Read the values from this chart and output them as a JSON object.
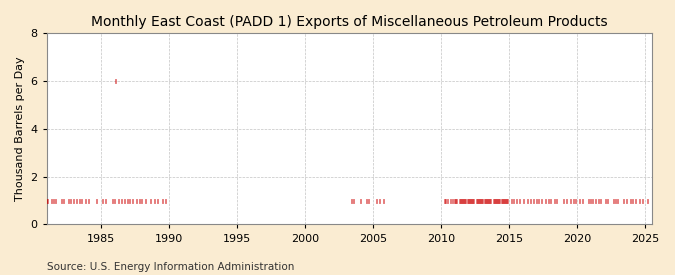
{
  "title": "Monthly East Coast (PADD 1) Exports of Miscellaneous Petroleum Products",
  "ylabel": "Thousand Barrels per Day",
  "source": "Source: U.S. Energy Information Administration",
  "background_color": "#faecd2",
  "plot_bg_color": "#ffffff",
  "line_color": "#cc0000",
  "grid_color": "#aaaaaa",
  "xlim": [
    1981.0,
    2025.5
  ],
  "ylim": [
    0,
    8
  ],
  "yticks": [
    0,
    2,
    4,
    6,
    8
  ],
  "xticks": [
    1985,
    1990,
    1995,
    2000,
    2005,
    2010,
    2015,
    2020,
    2025
  ],
  "title_fontsize": 10,
  "ylabel_fontsize": 8,
  "source_fontsize": 7.5,
  "data_1s_early": [
    [
      1981,
      1
    ],
    [
      1981,
      2
    ],
    [
      1981,
      3
    ],
    [
      1981,
      5
    ],
    [
      1981,
      7
    ],
    [
      1981,
      9
    ],
    [
      1982,
      2
    ],
    [
      1982,
      4
    ],
    [
      1982,
      6
    ],
    [
      1982,
      8
    ],
    [
      1982,
      10
    ],
    [
      1983,
      1
    ],
    [
      1983,
      3
    ],
    [
      1983,
      6
    ],
    [
      1983,
      8
    ],
    [
      1983,
      11
    ],
    [
      1984,
      2
    ],
    [
      1984,
      5
    ],
    [
      1984,
      9
    ],
    [
      1984,
      12
    ],
    [
      1985,
      2
    ],
    [
      1985,
      5
    ],
    [
      1985,
      8
    ],
    [
      1985,
      11
    ],
    [
      1986,
      1
    ],
    [
      1986,
      4
    ],
    [
      1986,
      7
    ],
    [
      1986,
      10
    ],
    [
      1986,
      12
    ],
    [
      1987,
      2
    ],
    [
      1987,
      5
    ],
    [
      1987,
      8
    ],
    [
      1987,
      11
    ],
    [
      1988,
      1
    ],
    [
      1988,
      4
    ],
    [
      1988,
      9
    ],
    [
      1988,
      12
    ],
    [
      1989,
      3
    ],
    [
      1989,
      7
    ],
    [
      1989,
      10
    ]
  ],
  "spike": [
    1986,
    2,
    6.0
  ],
  "data_2003_2005": [
    [
      2003,
      6
    ],
    [
      2003,
      8
    ],
    [
      2003,
      10
    ],
    [
      2004,
      2
    ],
    [
      2004,
      5
    ],
    [
      2004,
      7
    ],
    [
      2004,
      9
    ],
    [
      2005,
      1
    ],
    [
      2005,
      4
    ],
    [
      2005,
      7
    ],
    [
      2005,
      10
    ]
  ],
  "data_2010_on": [
    [
      2010,
      4
    ],
    [
      2010,
      5
    ],
    [
      2010,
      7
    ],
    [
      2010,
      9
    ],
    [
      2010,
      11
    ],
    [
      2011,
      1
    ],
    [
      2011,
      2
    ],
    [
      2011,
      3
    ],
    [
      2011,
      4
    ],
    [
      2011,
      5
    ],
    [
      2011,
      6
    ],
    [
      2011,
      7
    ],
    [
      2011,
      8
    ],
    [
      2011,
      9
    ],
    [
      2011,
      10
    ],
    [
      2011,
      11
    ],
    [
      2011,
      12
    ],
    [
      2012,
      1
    ],
    [
      2012,
      2
    ],
    [
      2012,
      3
    ],
    [
      2012,
      4
    ],
    [
      2012,
      5
    ],
    [
      2012,
      6
    ],
    [
      2012,
      7
    ],
    [
      2012,
      8
    ],
    [
      2012,
      9
    ],
    [
      2012,
      10
    ],
    [
      2012,
      11
    ],
    [
      2012,
      12
    ],
    [
      2013,
      1
    ],
    [
      2013,
      2
    ],
    [
      2013,
      3
    ],
    [
      2013,
      4
    ],
    [
      2013,
      5
    ],
    [
      2013,
      6
    ],
    [
      2013,
      7
    ],
    [
      2013,
      8
    ],
    [
      2013,
      9
    ],
    [
      2013,
      10
    ],
    [
      2013,
      11
    ],
    [
      2013,
      12
    ],
    [
      2014,
      1
    ],
    [
      2014,
      2
    ],
    [
      2014,
      3
    ],
    [
      2014,
      4
    ],
    [
      2014,
      5
    ],
    [
      2014,
      6
    ],
    [
      2014,
      7
    ],
    [
      2014,
      8
    ],
    [
      2014,
      9
    ],
    [
      2014,
      10
    ],
    [
      2014,
      11
    ],
    [
      2014,
      12
    ],
    [
      2015,
      1
    ],
    [
      2015,
      3
    ],
    [
      2015,
      5
    ],
    [
      2015,
      8
    ],
    [
      2015,
      10
    ],
    [
      2016,
      2
    ],
    [
      2016,
      5
    ],
    [
      2016,
      8
    ],
    [
      2016,
      11
    ],
    [
      2017,
      1
    ],
    [
      2017,
      3
    ],
    [
      2017,
      6
    ],
    [
      2017,
      9
    ],
    [
      2017,
      12
    ],
    [
      2018,
      2
    ],
    [
      2018,
      5
    ],
    [
      2018,
      7
    ],
    [
      2018,
      10
    ],
    [
      2019,
      1
    ],
    [
      2019,
      4
    ],
    [
      2019,
      7
    ],
    [
      2019,
      10
    ],
    [
      2019,
      12
    ],
    [
      2020,
      3
    ],
    [
      2020,
      6
    ],
    [
      2020,
      9
    ],
    [
      2020,
      11
    ],
    [
      2021,
      1
    ],
    [
      2021,
      3
    ],
    [
      2021,
      5
    ],
    [
      2021,
      8
    ],
    [
      2021,
      10
    ],
    [
      2021,
      12
    ],
    [
      2022,
      2
    ],
    [
      2022,
      4
    ],
    [
      2022,
      7
    ],
    [
      2022,
      9
    ],
    [
      2022,
      11
    ],
    [
      2023,
      1
    ],
    [
      2023,
      3
    ],
    [
      2023,
      6
    ],
    [
      2023,
      9
    ],
    [
      2023,
      12
    ],
    [
      2024,
      2
    ],
    [
      2024,
      5
    ],
    [
      2024,
      8
    ],
    [
      2024,
      11
    ],
    [
      2025,
      1
    ],
    [
      2025,
      3
    ]
  ],
  "data_0s_at_axis": [
    [
      1981,
      2
    ],
    [
      1981,
      6
    ],
    [
      1981,
      10
    ],
    [
      1982,
      1
    ],
    [
      1982,
      5
    ],
    [
      1982,
      9
    ],
    [
      2010,
      2
    ],
    [
      2010,
      6
    ],
    [
      2010,
      8
    ],
    [
      2010,
      10
    ],
    [
      2010,
      12
    ],
    [
      2011,
      3
    ],
    [
      2011,
      6
    ],
    [
      2011,
      9
    ],
    [
      2011,
      12
    ],
    [
      2012,
      2
    ],
    [
      2012,
      5
    ],
    [
      2012,
      10
    ],
    [
      2013,
      4
    ],
    [
      2013,
      8
    ],
    [
      2013,
      11
    ],
    [
      2014,
      2
    ],
    [
      2014,
      6
    ],
    [
      2014,
      10
    ],
    [
      2019,
      3
    ],
    [
      2019,
      8
    ],
    [
      2020,
      1
    ],
    [
      2020,
      5
    ],
    [
      2020,
      10
    ],
    [
      2021,
      7
    ],
    [
      2022,
      3
    ],
    [
      2022,
      6
    ],
    [
      2023,
      4
    ],
    [
      2023,
      8
    ]
  ]
}
